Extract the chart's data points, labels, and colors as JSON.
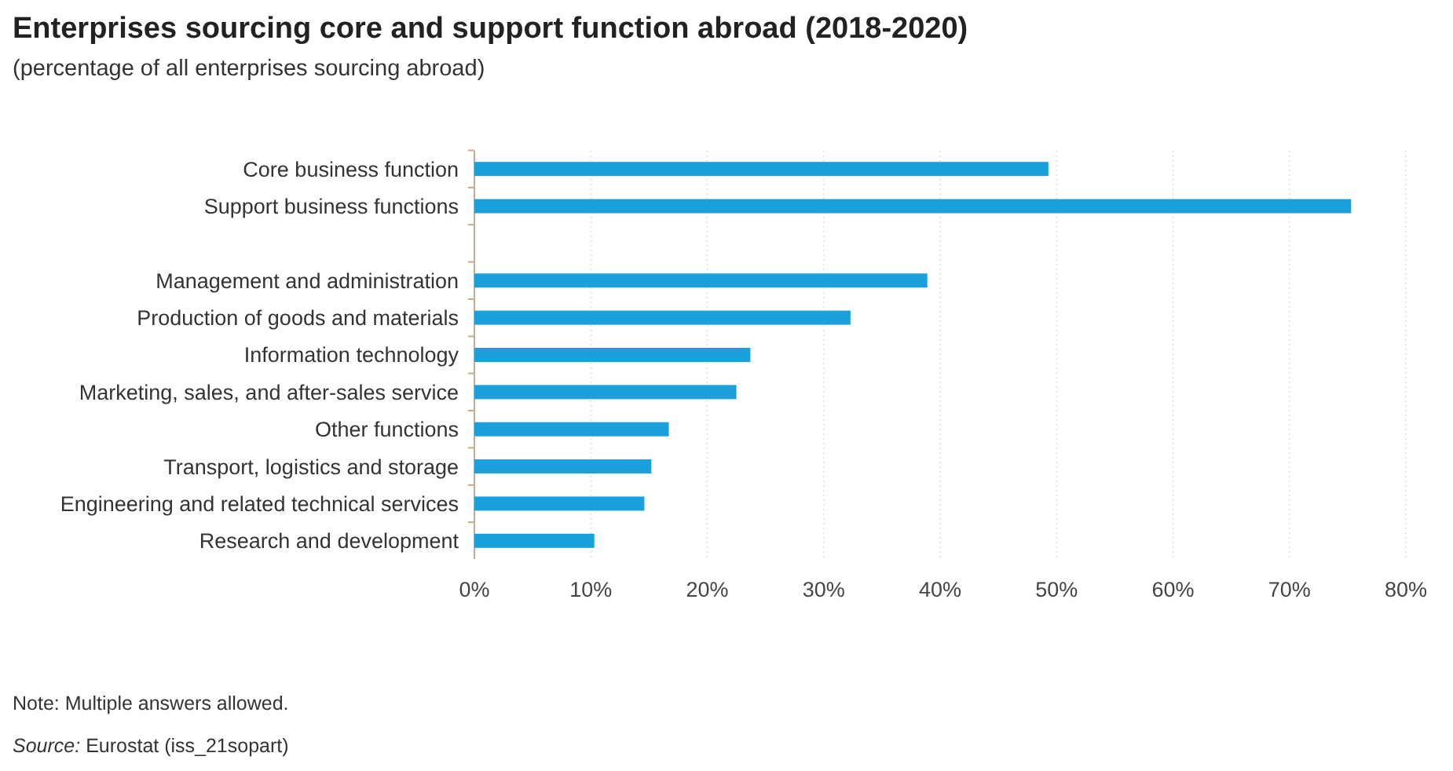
{
  "chart_data": {
    "type": "bar",
    "orientation": "horizontal",
    "title": "Enterprises sourcing core and support function abroad (2018-2020)",
    "subtitle": "(percentage of all enterprises sourcing abroad)",
    "categories": [
      "Core business function",
      "Support business functions",
      null,
      "Management and administration",
      "Production of goods and materials",
      "Information technology",
      "Marketing, sales, and after-sales service",
      "Other functions",
      "Transport, logistics and storage",
      "Engineering and related technical services",
      "Research and development"
    ],
    "values": [
      49.3,
      75.3,
      null,
      38.9,
      32.3,
      23.7,
      22.5,
      16.7,
      15.2,
      14.6,
      10.3
    ],
    "color": "#1ba0dc",
    "xlim": [
      0,
      80
    ],
    "xticks": [
      {
        "value": 0,
        "label": "0%"
      },
      {
        "value": 10,
        "label": "10%"
      },
      {
        "value": 20,
        "label": "20%"
      },
      {
        "value": 30,
        "label": "30%"
      },
      {
        "value": 40,
        "label": "40%"
      },
      {
        "value": 50,
        "label": "50%"
      },
      {
        "value": 60,
        "label": "60%"
      },
      {
        "value": 70,
        "label": "70%"
      },
      {
        "value": 80,
        "label": "80%"
      }
    ],
    "grid": "x",
    "annotations": [
      "Note: Multiple answers allowed.",
      "Source: Eurostat (iss_21sopart)"
    ]
  }
}
